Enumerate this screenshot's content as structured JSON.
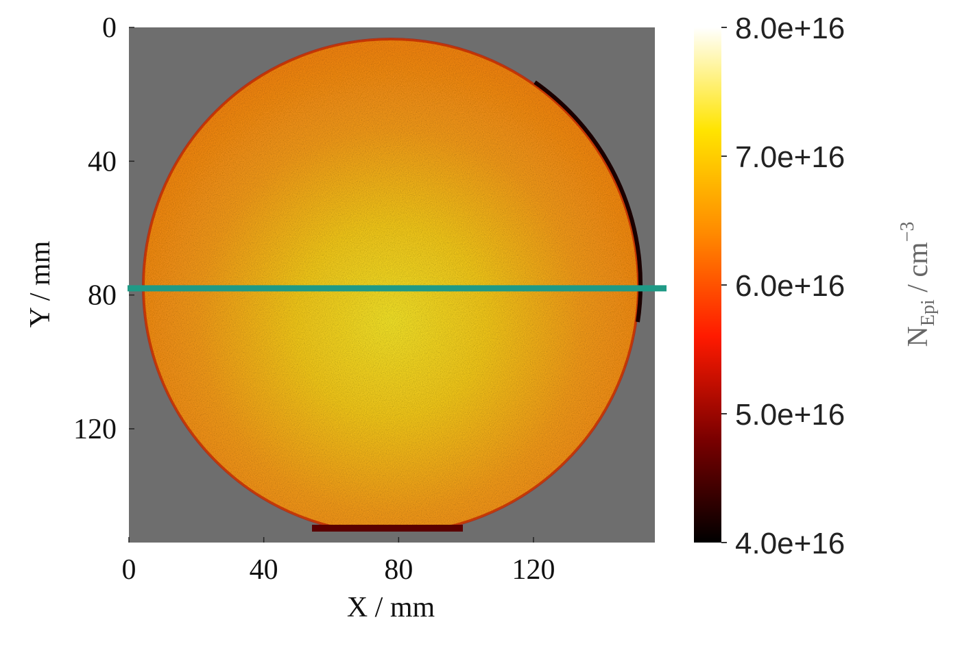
{
  "chart_data": {
    "type": "heatmap",
    "xlabel": "X / mm",
    "ylabel": "Y / mm",
    "xlim": [
      0,
      156
    ],
    "ylim": [
      0,
      154
    ],
    "xticks": [
      0,
      40,
      80,
      120
    ],
    "yticks": [
      0,
      40,
      80,
      120
    ],
    "y_inverted": true,
    "background": "#6e6e6e",
    "colorbar": {
      "label": {
        "text": "N",
        "sub": "Epi",
        "unit": " / cm",
        "sup": "−3"
      },
      "lim": [
        40000000000000000,
        80000000000000000
      ],
      "ticks": [
        {
          "value": 40000000000000000,
          "label": "4.0e+16"
        },
        {
          "value": 50000000000000000,
          "label": "5.0e+16"
        },
        {
          "value": 60000000000000000,
          "label": "6.0e+16"
        },
        {
          "value": 70000000000000000,
          "label": "7.0e+16"
        },
        {
          "value": 80000000000000000,
          "label": "8.0e+16"
        }
      ],
      "colormap": [
        "#000000",
        "#7a0000",
        "#ff1a00",
        "#ff8a00",
        "#ffe400",
        "#ffffff"
      ]
    },
    "hline": {
      "y": 78,
      "color": "#1f9a86"
    }
  }
}
